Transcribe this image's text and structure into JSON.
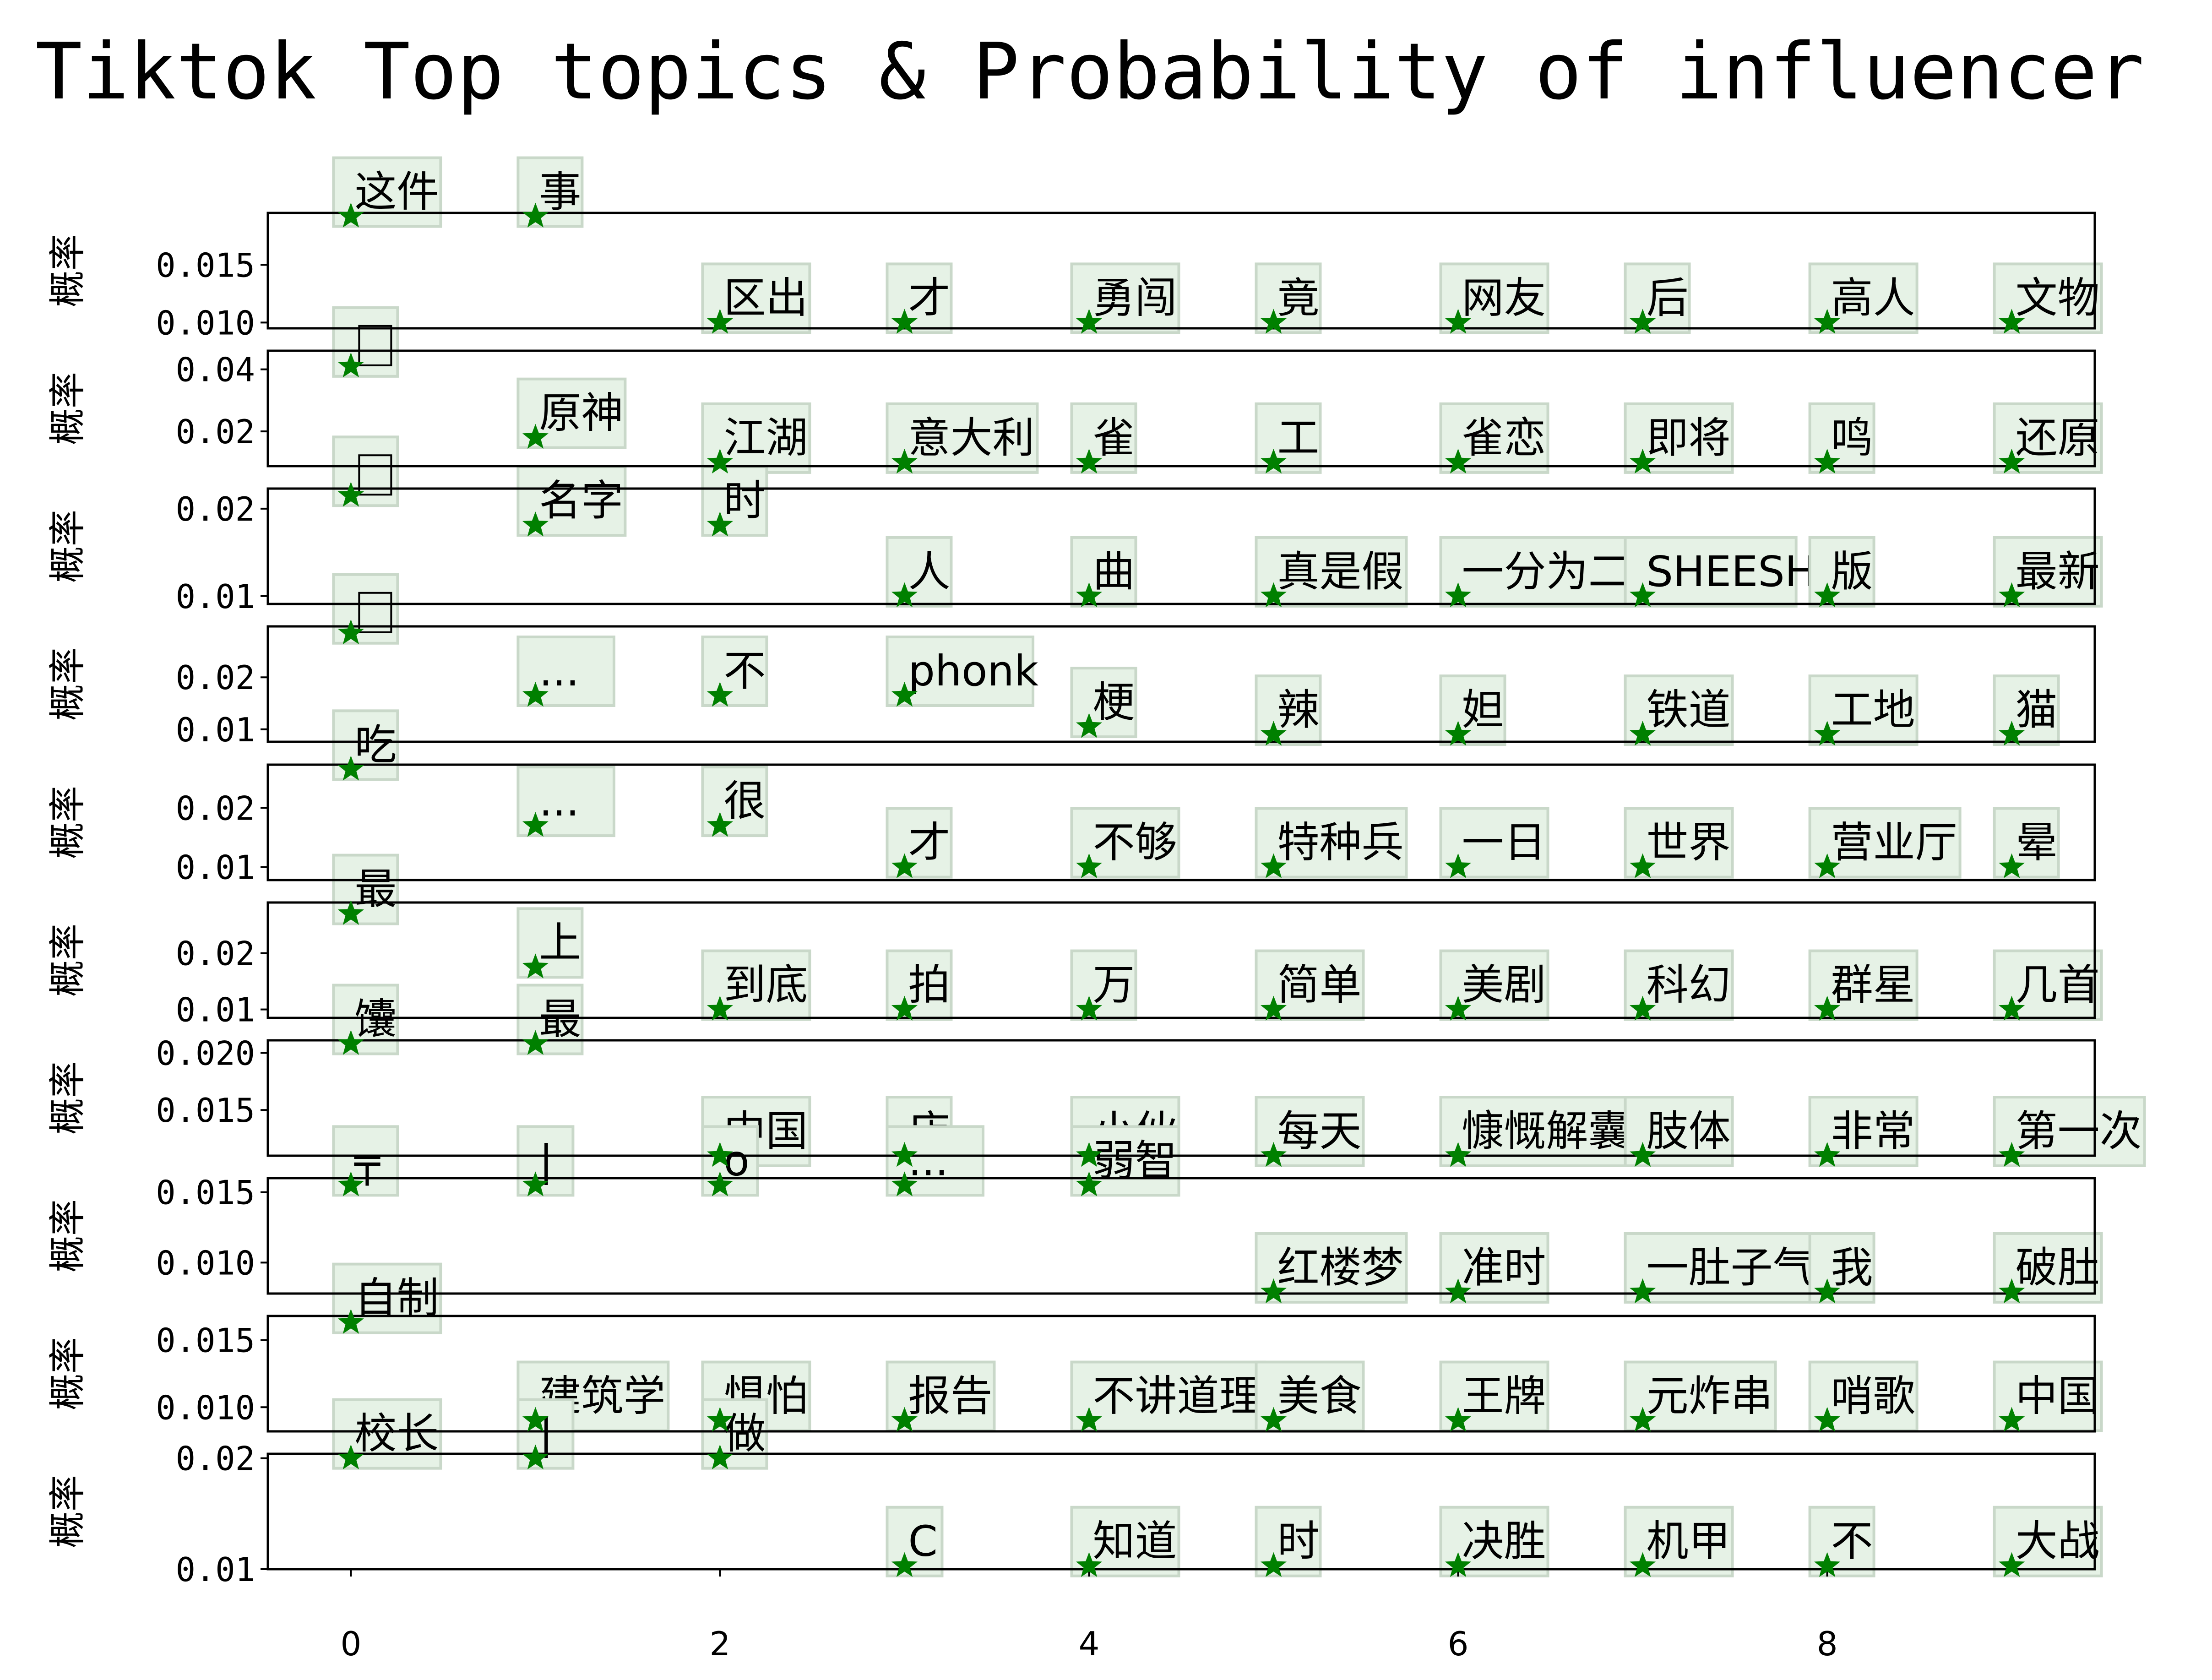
{
  "chart_data": {
    "type": "scatter",
    "title": "Tiktok Top topics & Probability of influencer",
    "marker": "star",
    "marker_color": "#008000",
    "label_box_color": "#e6f2e6",
    "xlabel": "",
    "x_ticks": [
      0,
      2,
      4,
      6,
      8
    ],
    "xlim": [
      -0.45,
      9.45
    ],
    "x": [
      0,
      1,
      2,
      3,
      4,
      5,
      6,
      7,
      8,
      9
    ],
    "panels": [
      {
        "ylabel": "概率",
        "ylim": [
          0.0095,
          0.0195
        ],
        "y_ticks": [
          "0.015",
          "0.010"
        ],
        "y_tick_values": [
          0.015,
          0.01
        ],
        "words": [
          "这件",
          "事",
          "区出",
          "才",
          "勇闯",
          "竟",
          "网友",
          "后",
          "高人",
          "文物"
        ],
        "values": [
          0.0192,
          0.0192,
          0.01,
          0.01,
          0.01,
          0.01,
          0.01,
          0.01,
          0.01,
          0.01
        ]
      },
      {
        "ylabel": "概率",
        "ylim": [
          0.0088,
          0.046
        ],
        "y_ticks": [
          "0.04",
          "0.02"
        ],
        "y_tick_values": [
          0.04,
          0.02
        ],
        "words": [
          "",
          "原神",
          "江湖",
          "意大利",
          "雀",
          "工",
          "雀恋",
          "即将",
          "鸣",
          "还原"
        ],
        "values": [
          0.041,
          0.018,
          0.01,
          0.01,
          0.01,
          0.01,
          0.01,
          0.01,
          0.01,
          0.01
        ]
      },
      {
        "ylabel": "概率",
        "ylim": [
          0.0091,
          0.0223
        ],
        "y_ticks": [
          "0.02",
          "0.01"
        ],
        "y_tick_values": [
          0.02,
          0.01
        ],
        "words": [
          "",
          "名字",
          "时",
          "人",
          "曲",
          "真是假",
          "一分为二",
          "SHEESH",
          "版",
          "最新"
        ],
        "values": [
          0.0215,
          0.0181,
          0.0181,
          0.01,
          0.01,
          0.01,
          0.01,
          0.01,
          0.01,
          0.01
        ]
      },
      {
        "ylabel": "概率",
        "ylim": [
          0.0076,
          0.0298
        ],
        "y_ticks": [
          "0.02",
          "0.01"
        ],
        "y_tick_values": [
          0.02,
          0.01
        ],
        "words": [
          "",
          "...",
          "不",
          "phonk",
          "梗",
          "辣",
          "妲",
          "铁道",
          "工地",
          "猫"
        ],
        "values": [
          0.0285,
          0.0165,
          0.0165,
          0.0165,
          0.0105,
          0.009,
          0.009,
          0.009,
          0.009,
          0.009
        ]
      },
      {
        "ylabel": "概率",
        "ylim": [
          0.0078,
          0.0273
        ],
        "y_ticks": [
          "0.02",
          "0.01"
        ],
        "y_tick_values": [
          0.02,
          0.01
        ],
        "words": [
          "吃",
          "...",
          "很",
          "才",
          "不够",
          "特种兵",
          "一日",
          "世界",
          "营业厅",
          "晕"
        ],
        "values": [
          0.0265,
          0.017,
          0.017,
          0.01,
          0.01,
          0.01,
          0.01,
          0.01,
          0.01,
          0.01
        ]
      },
      {
        "ylabel": "概率",
        "ylim": [
          0.0085,
          0.029
        ],
        "y_ticks": [
          "0.02",
          "0.01"
        ],
        "y_tick_values": [
          0.02,
          0.01
        ],
        "words": [
          "最",
          "上",
          "到底",
          "拍",
          "万",
          "简单",
          "美剧",
          "科幻",
          "群星",
          "几首"
        ],
        "values": [
          0.027,
          0.0175,
          0.01,
          0.01,
          0.01,
          0.01,
          0.01,
          0.01,
          0.01,
          0.01
        ]
      },
      {
        "ylabel": "概率",
        "ylim": [
          0.011,
          0.0211
        ],
        "y_ticks": [
          "0.020",
          "0.015"
        ],
        "y_tick_values": [
          0.02,
          0.015
        ],
        "words": [
          "馕",
          "最",
          "中国",
          "店",
          "小伙",
          "每天",
          "慷慨解囊",
          "肢体",
          "非常",
          "第一次"
        ],
        "values": [
          0.0208,
          0.0208,
          0.011,
          0.011,
          0.011,
          0.011,
          0.011,
          0.011,
          0.011,
          0.011
        ]
      },
      {
        "ylabel": "概率",
        "ylim": [
          0.0078,
          0.016
        ],
        "y_ticks": [
          "0.015",
          "0.010"
        ],
        "y_tick_values": [
          0.015,
          0.01
        ],
        "words": [
          "╤",
          "|",
          "o",
          "...",
          "弱智",
          "红楼梦",
          "准时",
          "一肚子气",
          "我",
          "破肚"
        ],
        "values": [
          0.0155,
          0.0155,
          0.0155,
          0.0155,
          0.0155,
          0.0079,
          0.0079,
          0.0079,
          0.0079,
          0.0079
        ]
      },
      {
        "ylabel": "概率",
        "ylim": [
          0.0082,
          0.0168
        ],
        "y_ticks": [
          "0.015",
          "0.010"
        ],
        "y_tick_values": [
          0.015,
          0.01
        ],
        "words": [
          "自制",
          "建筑学",
          "惧怕",
          "报告",
          "不讲道理",
          "美食",
          "王牌",
          "元炸串",
          "哨歌",
          "中国"
        ],
        "values": [
          0.0163,
          0.009,
          0.009,
          0.009,
          0.009,
          0.009,
          0.009,
          0.009,
          0.009,
          0.009
        ]
      },
      {
        "ylabel": "概率",
        "ylim": [
          0.01,
          0.0204
        ],
        "y_ticks": [
          "0.02",
          "0.01"
        ],
        "y_tick_values": [
          0.02,
          0.01
        ],
        "words": [
          "校长",
          "|",
          "做",
          "C",
          "知道",
          "时",
          "决胜",
          "机甲",
          "不",
          "大战"
        ],
        "values": [
          0.02,
          0.02,
          0.02,
          0.0103,
          0.0103,
          0.0103,
          0.0103,
          0.0103,
          0.0103,
          0.0103
        ]
      }
    ]
  }
}
